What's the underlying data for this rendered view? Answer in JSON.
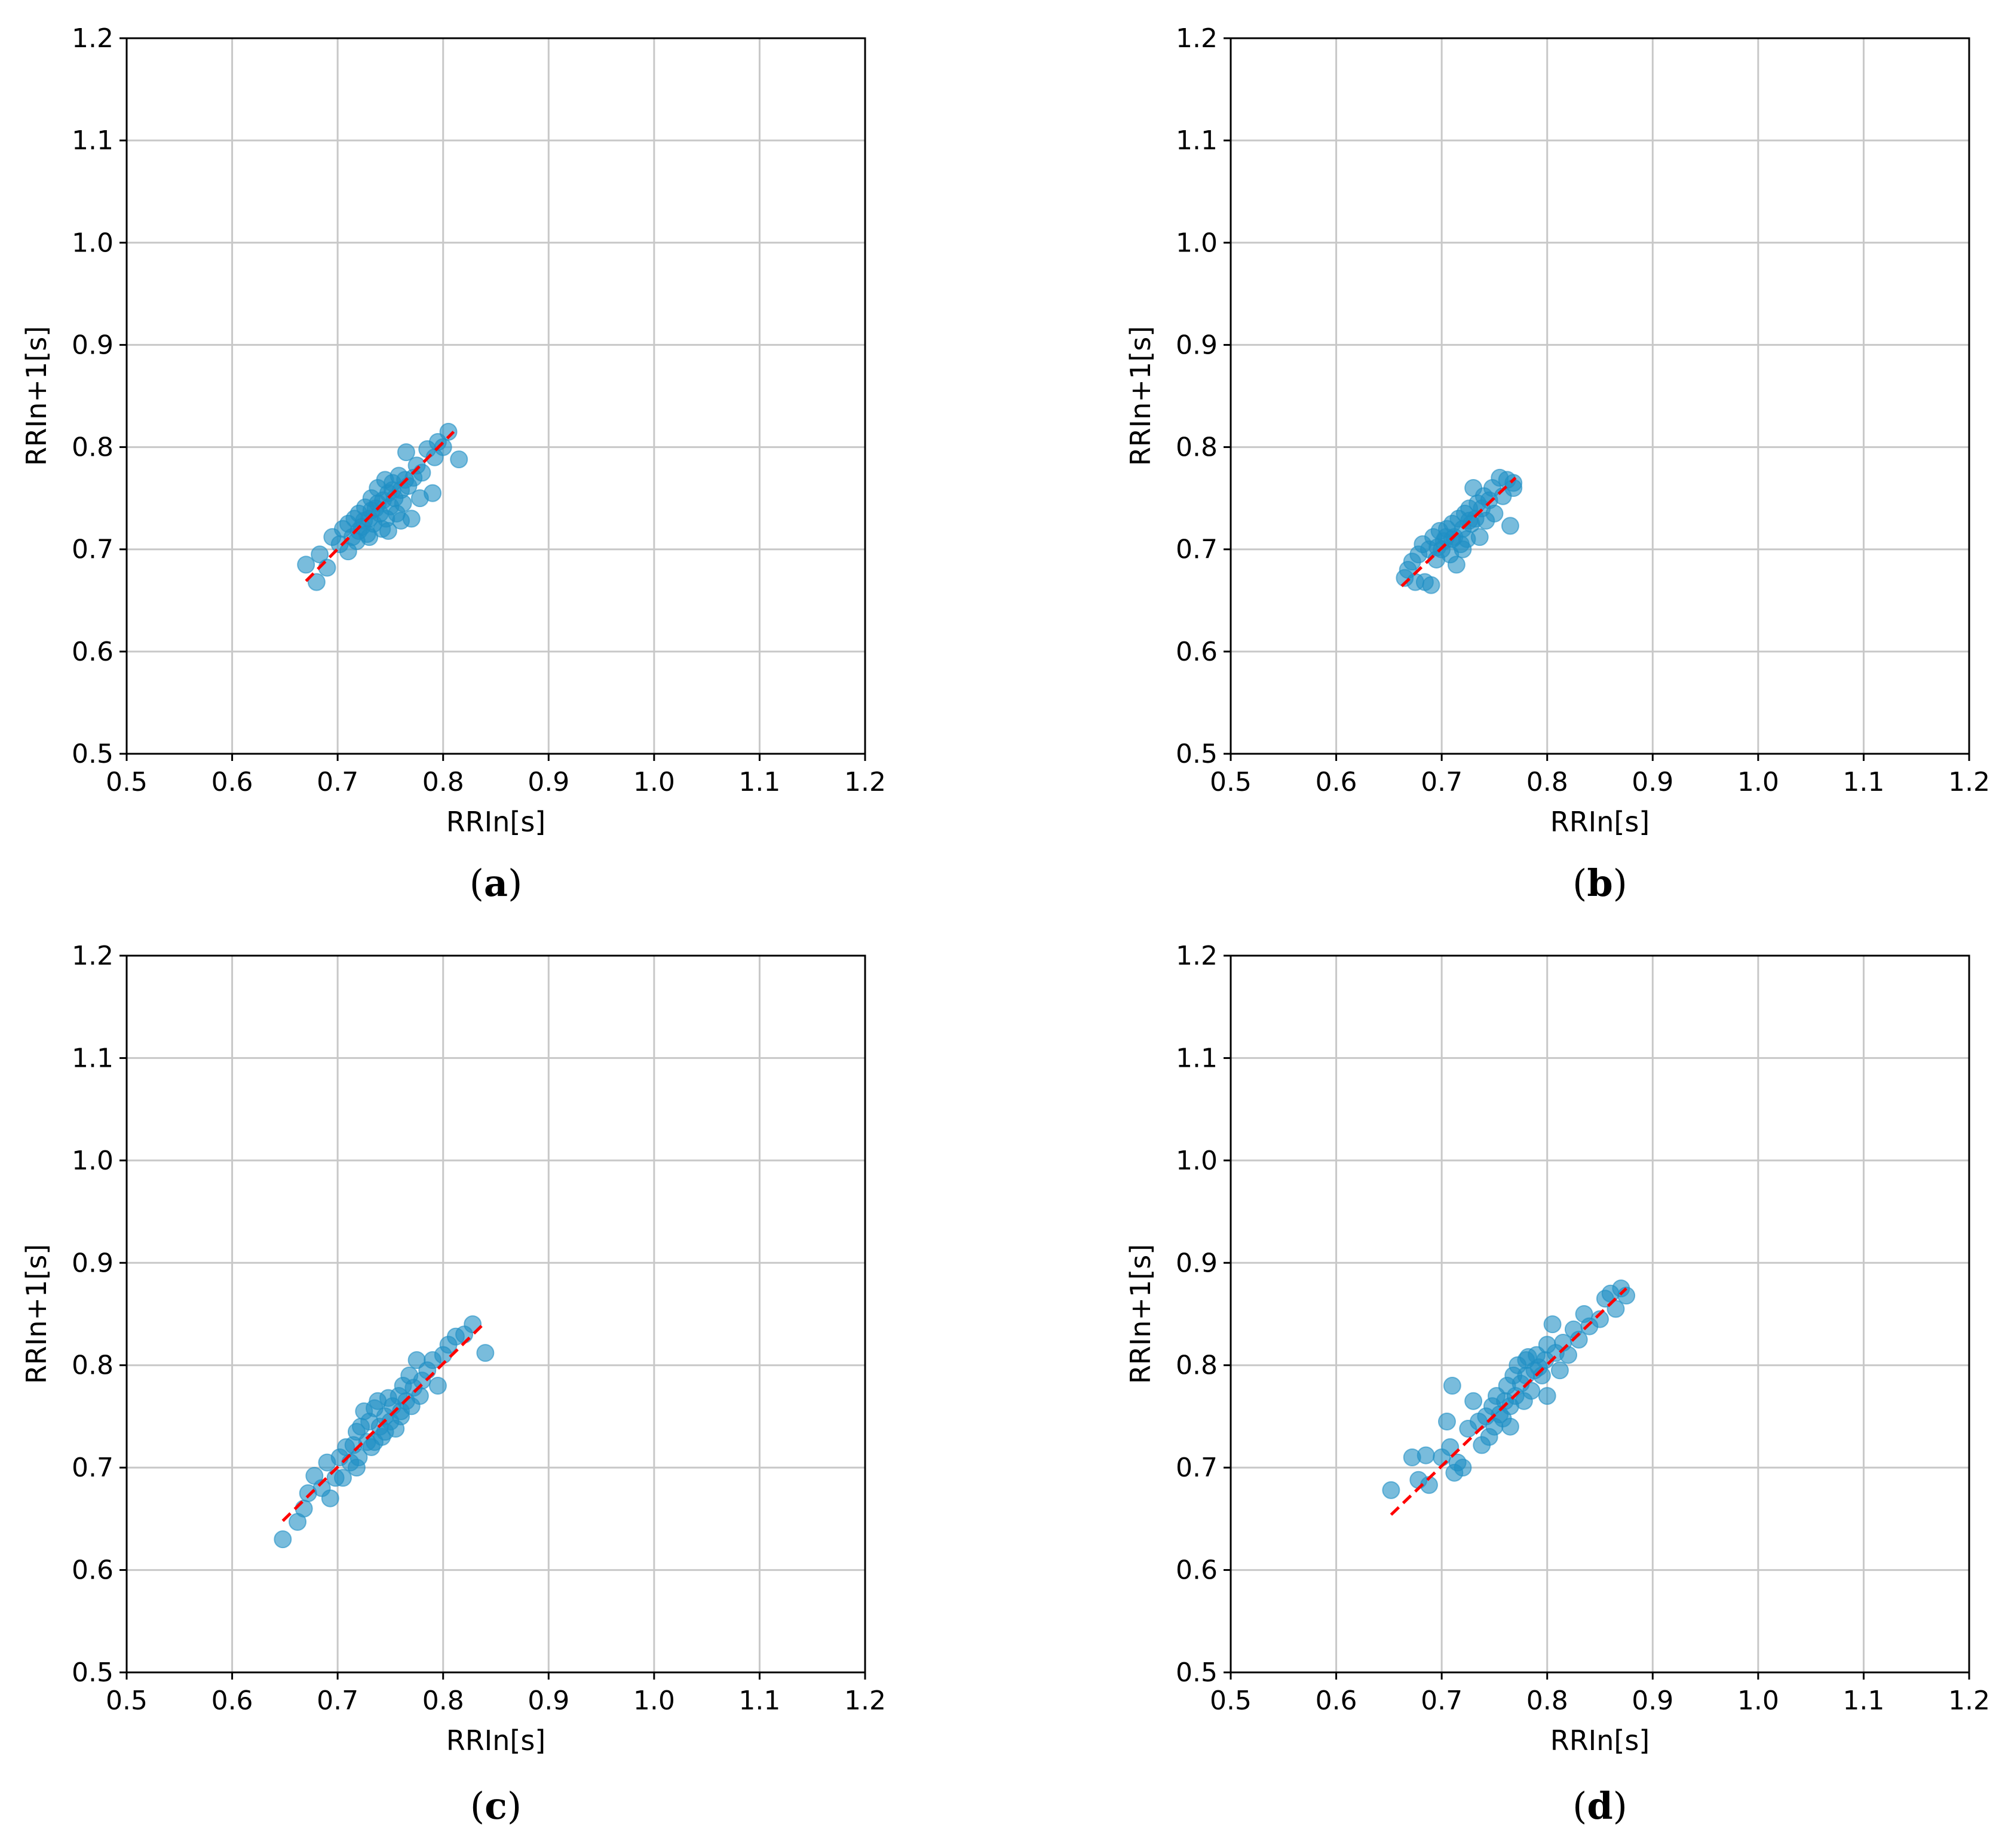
{
  "chart_data": [
    {
      "type": "scatter",
      "caption": "(a)",
      "caption_letter": "a",
      "xlabel": "RRIn[s]",
      "ylabel": "RRIn+1[s]",
      "xlim": [
        0.5,
        1.2
      ],
      "ylim": [
        0.5,
        1.2
      ],
      "xticks": [
        "0.5",
        "0.6",
        "0.7",
        "0.8",
        "0.9",
        "1.0",
        "1.1",
        "1.2"
      ],
      "yticks": [
        "0.5",
        "0.6",
        "0.7",
        "0.8",
        "0.9",
        "1.0",
        "1.1",
        "1.2"
      ],
      "grid": true,
      "point_color": "#1f8fc4",
      "fit_line_color": "#ff0000",
      "fit_line": [
        [
          0.67,
          0.669
        ],
        [
          0.81,
          0.815
        ]
      ],
      "points": [
        [
          0.67,
          0.685
        ],
        [
          0.68,
          0.668
        ],
        [
          0.683,
          0.695
        ],
        [
          0.69,
          0.682
        ],
        [
          0.695,
          0.712
        ],
        [
          0.702,
          0.705
        ],
        [
          0.705,
          0.72
        ],
        [
          0.71,
          0.698
        ],
        [
          0.71,
          0.725
        ],
        [
          0.714,
          0.712
        ],
        [
          0.716,
          0.73
        ],
        [
          0.72,
          0.718
        ],
        [
          0.72,
          0.735
        ],
        [
          0.723,
          0.722
        ],
        [
          0.726,
          0.741
        ],
        [
          0.728,
          0.715
        ],
        [
          0.73,
          0.73
        ],
        [
          0.732,
          0.75
        ],
        [
          0.734,
          0.725
        ],
        [
          0.736,
          0.74
        ],
        [
          0.738,
          0.76
        ],
        [
          0.74,
          0.735
        ],
        [
          0.742,
          0.72
        ],
        [
          0.743,
          0.748
        ],
        [
          0.745,
          0.768
        ],
        [
          0.746,
          0.73
        ],
        [
          0.748,
          0.755
        ],
        [
          0.75,
          0.742
        ],
        [
          0.752,
          0.765
        ],
        [
          0.754,
          0.75
        ],
        [
          0.756,
          0.735
        ],
        [
          0.758,
          0.772
        ],
        [
          0.76,
          0.758
        ],
        [
          0.762,
          0.745
        ],
        [
          0.765,
          0.795
        ],
        [
          0.767,
          0.762
        ],
        [
          0.77,
          0.73
        ],
        [
          0.772,
          0.77
        ],
        [
          0.775,
          0.782
        ],
        [
          0.778,
          0.75
        ],
        [
          0.78,
          0.775
        ],
        [
          0.785,
          0.798
        ],
        [
          0.79,
          0.755
        ],
        [
          0.792,
          0.79
        ],
        [
          0.795,
          0.805
        ],
        [
          0.8,
          0.8
        ],
        [
          0.805,
          0.815
        ],
        [
          0.815,
          0.788
        ],
        [
          0.73,
          0.712
        ],
        [
          0.748,
          0.718
        ],
        [
          0.76,
          0.728
        ],
        [
          0.725,
          0.728
        ],
        [
          0.738,
          0.745
        ],
        [
          0.752,
          0.758
        ],
        [
          0.764,
          0.768
        ],
        [
          0.718,
          0.708
        ],
        [
          0.732,
          0.738
        ]
      ]
    },
    {
      "type": "scatter",
      "caption": "(b)",
      "caption_letter": "b",
      "xlabel": "RRIn[s]",
      "ylabel": "RRIn+1[s]",
      "xlim": [
        0.5,
        1.2
      ],
      "ylim": [
        0.5,
        1.2
      ],
      "xticks": [
        "0.5",
        "0.6",
        "0.7",
        "0.8",
        "0.9",
        "1.0",
        "1.1",
        "1.2"
      ],
      "yticks": [
        "0.5",
        "0.6",
        "0.7",
        "0.8",
        "0.9",
        "1.0",
        "1.1",
        "1.2"
      ],
      "grid": true,
      "point_color": "#1f8fc4",
      "fit_line_color": "#ff0000",
      "fit_line": [
        [
          0.662,
          0.664
        ],
        [
          0.77,
          0.77
        ]
      ],
      "points": [
        [
          0.665,
          0.672
        ],
        [
          0.668,
          0.68
        ],
        [
          0.672,
          0.688
        ],
        [
          0.675,
          0.668
        ],
        [
          0.678,
          0.695
        ],
        [
          0.682,
          0.705
        ],
        [
          0.684,
          0.668
        ],
        [
          0.688,
          0.7
        ],
        [
          0.69,
          0.665
        ],
        [
          0.692,
          0.712
        ],
        [
          0.695,
          0.69
        ],
        [
          0.698,
          0.718
        ],
        [
          0.7,
          0.7
        ],
        [
          0.702,
          0.708
        ],
        [
          0.705,
          0.72
        ],
        [
          0.708,
          0.695
        ],
        [
          0.71,
          0.725
        ],
        [
          0.712,
          0.712
        ],
        [
          0.714,
          0.685
        ],
        [
          0.716,
          0.73
        ],
        [
          0.718,
          0.705
        ],
        [
          0.72,
          0.72
        ],
        [
          0.722,
          0.735
        ],
        [
          0.724,
          0.71
        ],
        [
          0.726,
          0.74
        ],
        [
          0.728,
          0.725
        ],
        [
          0.73,
          0.76
        ],
        [
          0.732,
          0.73
        ],
        [
          0.734,
          0.745
        ],
        [
          0.736,
          0.712
        ],
        [
          0.738,
          0.74
        ],
        [
          0.74,
          0.752
        ],
        [
          0.742,
          0.728
        ],
        [
          0.745,
          0.748
        ],
        [
          0.748,
          0.76
        ],
        [
          0.75,
          0.735
        ],
        [
          0.755,
          0.77
        ],
        [
          0.758,
          0.752
        ],
        [
          0.762,
          0.768
        ],
        [
          0.765,
          0.723
        ],
        [
          0.768,
          0.765
        ],
        [
          0.768,
          0.76
        ],
        [
          0.71,
          0.71
        ],
        [
          0.72,
          0.7
        ],
        [
          0.726,
          0.728
        ],
        [
          0.704,
          0.712
        ],
        [
          0.696,
          0.702
        ]
      ]
    },
    {
      "type": "scatter",
      "caption": "(c)",
      "caption_letter": "c",
      "xlabel": "RRIn[s]",
      "ylabel": "RRIn+1[s]",
      "xlim": [
        0.5,
        1.2
      ],
      "ylim": [
        0.5,
        1.2
      ],
      "xticks": [
        "0.5",
        "0.6",
        "0.7",
        "0.8",
        "0.9",
        "1.0",
        "1.1",
        "1.2"
      ],
      "yticks": [
        "0.5",
        "0.6",
        "0.7",
        "0.8",
        "0.9",
        "1.0",
        "1.1",
        "1.2"
      ],
      "grid": true,
      "point_color": "#1f8fc4",
      "fit_line_color": "#ff0000",
      "fit_line": [
        [
          0.648,
          0.648
        ],
        [
          0.84,
          0.842
        ]
      ],
      "points": [
        [
          0.648,
          0.63
        ],
        [
          0.662,
          0.647
        ],
        [
          0.668,
          0.66
        ],
        [
          0.672,
          0.675
        ],
        [
          0.678,
          0.692
        ],
        [
          0.685,
          0.68
        ],
        [
          0.69,
          0.705
        ],
        [
          0.693,
          0.67
        ],
        [
          0.698,
          0.69
        ],
        [
          0.702,
          0.71
        ],
        [
          0.705,
          0.69
        ],
        [
          0.708,
          0.72
        ],
        [
          0.712,
          0.705
        ],
        [
          0.715,
          0.722
        ],
        [
          0.718,
          0.735
        ],
        [
          0.72,
          0.71
        ],
        [
          0.722,
          0.74
        ],
        [
          0.725,
          0.755
        ],
        [
          0.728,
          0.725
        ],
        [
          0.73,
          0.745
        ],
        [
          0.732,
          0.72
        ],
        [
          0.735,
          0.758
        ],
        [
          0.738,
          0.765
        ],
        [
          0.74,
          0.74
        ],
        [
          0.742,
          0.73
        ],
        [
          0.745,
          0.75
        ],
        [
          0.748,
          0.768
        ],
        [
          0.75,
          0.745
        ],
        [
          0.752,
          0.76
        ],
        [
          0.755,
          0.738
        ],
        [
          0.758,
          0.77
        ],
        [
          0.76,
          0.75
        ],
        [
          0.762,
          0.78
        ],
        [
          0.765,
          0.765
        ],
        [
          0.768,
          0.79
        ],
        [
          0.77,
          0.76
        ],
        [
          0.772,
          0.778
        ],
        [
          0.775,
          0.805
        ],
        [
          0.778,
          0.77
        ],
        [
          0.78,
          0.785
        ],
        [
          0.785,
          0.795
        ],
        [
          0.79,
          0.805
        ],
        [
          0.795,
          0.78
        ],
        [
          0.8,
          0.81
        ],
        [
          0.805,
          0.82
        ],
        [
          0.812,
          0.828
        ],
        [
          0.82,
          0.83
        ],
        [
          0.828,
          0.84
        ],
        [
          0.84,
          0.812
        ],
        [
          0.735,
          0.725
        ],
        [
          0.745,
          0.735
        ],
        [
          0.718,
          0.7
        ],
        [
          0.76,
          0.755
        ]
      ]
    },
    {
      "type": "scatter",
      "caption": "(d)",
      "caption_letter": "d",
      "xlabel": "RRIn[s]",
      "ylabel": "RRIn+1[s]",
      "xlim": [
        0.5,
        1.2
      ],
      "ylim": [
        0.5,
        1.2
      ],
      "xticks": [
        "0.5",
        "0.6",
        "0.7",
        "0.8",
        "0.9",
        "1.0",
        "1.1",
        "1.2"
      ],
      "yticks": [
        "0.5",
        "0.6",
        "0.7",
        "0.8",
        "0.9",
        "1.0",
        "1.1",
        "1.2"
      ],
      "grid": true,
      "point_color": "#1f8fc4",
      "fit_line_color": "#ff0000",
      "fit_line": [
        [
          0.652,
          0.654
        ],
        [
          0.875,
          0.875
        ]
      ],
      "points": [
        [
          0.652,
          0.678
        ],
        [
          0.672,
          0.71
        ],
        [
          0.678,
          0.688
        ],
        [
          0.685,
          0.712
        ],
        [
          0.688,
          0.683
        ],
        [
          0.7,
          0.71
        ],
        [
          0.705,
          0.745
        ],
        [
          0.708,
          0.72
        ],
        [
          0.71,
          0.78
        ],
        [
          0.712,
          0.695
        ],
        [
          0.715,
          0.705
        ],
        [
          0.72,
          0.7
        ],
        [
          0.725,
          0.738
        ],
        [
          0.73,
          0.765
        ],
        [
          0.735,
          0.745
        ],
        [
          0.738,
          0.722
        ],
        [
          0.742,
          0.75
        ],
        [
          0.745,
          0.73
        ],
        [
          0.748,
          0.76
        ],
        [
          0.75,
          0.74
        ],
        [
          0.752,
          0.77
        ],
        [
          0.755,
          0.752
        ],
        [
          0.758,
          0.748
        ],
        [
          0.76,
          0.765
        ],
        [
          0.762,
          0.78
        ],
        [
          0.765,
          0.76
        ],
        [
          0.768,
          0.79
        ],
        [
          0.77,
          0.77
        ],
        [
          0.772,
          0.8
        ],
        [
          0.775,
          0.782
        ],
        [
          0.778,
          0.765
        ],
        [
          0.78,
          0.79
        ],
        [
          0.782,
          0.808
        ],
        [
          0.785,
          0.775
        ],
        [
          0.788,
          0.795
        ],
        [
          0.79,
          0.81
        ],
        [
          0.795,
          0.79
        ],
        [
          0.798,
          0.805
        ],
        [
          0.8,
          0.82
        ],
        [
          0.805,
          0.84
        ],
        [
          0.808,
          0.812
        ],
        [
          0.812,
          0.795
        ],
        [
          0.815,
          0.822
        ],
        [
          0.82,
          0.81
        ],
        [
          0.825,
          0.835
        ],
        [
          0.83,
          0.825
        ],
        [
          0.835,
          0.85
        ],
        [
          0.84,
          0.838
        ],
        [
          0.85,
          0.845
        ],
        [
          0.855,
          0.865
        ],
        [
          0.86,
          0.87
        ],
        [
          0.865,
          0.855
        ],
        [
          0.87,
          0.875
        ],
        [
          0.875,
          0.868
        ],
        [
          0.765,
          0.74
        ],
        [
          0.78,
          0.805
        ],
        [
          0.8,
          0.77
        ],
        [
          0.792,
          0.798
        ]
      ]
    }
  ]
}
